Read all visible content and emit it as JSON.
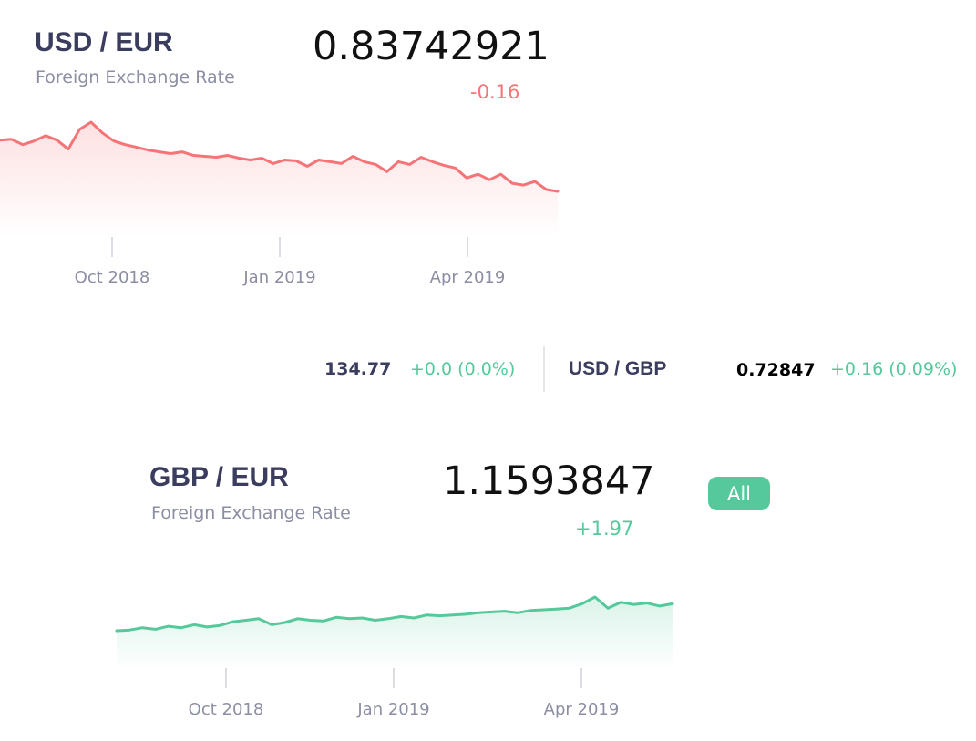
{
  "usd_eur": {
    "title": "USD / EUR",
    "subtitle": "Foreign Exchange Rate",
    "rate": "0.83742921",
    "change": "-0.16",
    "color": "#f47478",
    "x_labels": [
      "Oct 2018",
      "Jan 2019",
      "Apr 2019"
    ],
    "series": [
      0.856,
      0.857,
      0.851,
      0.855,
      0.861,
      0.856,
      0.846,
      0.868,
      0.876,
      0.864,
      0.855,
      0.851,
      0.848,
      0.845,
      0.843,
      0.841,
      0.843,
      0.839,
      0.838,
      0.837,
      0.839,
      0.836,
      0.834,
      0.836,
      0.83,
      0.834,
      0.833,
      0.827,
      0.834,
      0.832,
      0.83,
      0.838,
      0.832,
      0.829,
      0.821,
      0.832,
      0.829,
      0.837,
      0.832,
      0.828,
      0.825,
      0.814,
      0.818,
      0.812,
      0.818,
      0.808,
      0.806,
      0.81,
      0.801,
      0.799
    ]
  },
  "ticker": {
    "value1": "134.77",
    "change1": "+0.0 (0.0%)",
    "pair2": "USD / GBP",
    "rate2": "0.72847",
    "change2": "+0.16 (0.09%)"
  },
  "gbp_eur": {
    "title": "GBP / EUR",
    "subtitle": "Foreign Exchange Rate",
    "rate": "1.1593847",
    "change": "+1.97",
    "button": "All",
    "color": "#55c99b",
    "x_labels": [
      "Oct 2018",
      "Jan 2019",
      "Apr 2019"
    ],
    "series": [
      1.1,
      1.101,
      1.104,
      1.102,
      1.106,
      1.104,
      1.108,
      1.105,
      1.107,
      1.112,
      1.114,
      1.116,
      1.108,
      1.111,
      1.116,
      1.114,
      1.113,
      1.118,
      1.116,
      1.117,
      1.114,
      1.116,
      1.119,
      1.117,
      1.121,
      1.12,
      1.121,
      1.122,
      1.124,
      1.125,
      1.126,
      1.124,
      1.127,
      1.128,
      1.129,
      1.13,
      1.136,
      1.145,
      1.13,
      1.138,
      1.135,
      1.137,
      1.133,
      1.136
    ]
  }
}
